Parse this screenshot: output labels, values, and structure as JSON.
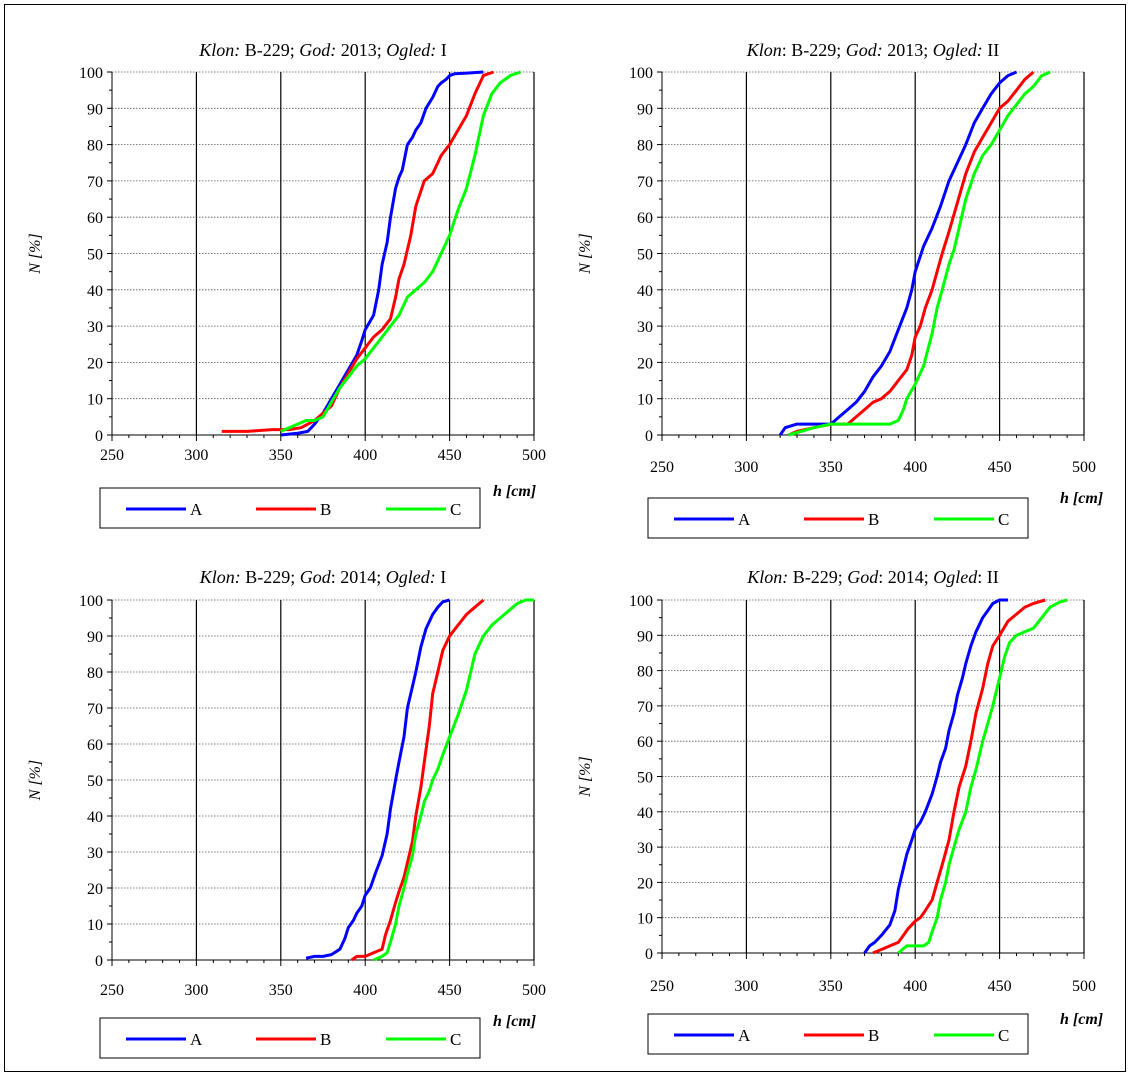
{
  "colors": {
    "A": "#0000ff",
    "B": "#ff0000",
    "C": "#00ff00"
  },
  "chart_data": [
    {
      "type": "line",
      "title": {
        "k1": "Klon:",
        "v1": " B-229; ",
        "k2": "God:",
        "v2": " 2013; ",
        "k3": "Ogled:",
        "v3": " I"
      },
      "xlabel": "h [cm]",
      "ylabel": "N [%]",
      "xlim": [
        250,
        500
      ],
      "ylim": [
        0,
        100
      ],
      "xticks": [
        "250",
        "300",
        "350",
        "400",
        "450",
        "500"
      ],
      "yticks": [
        "0",
        "10",
        "20",
        "30",
        "40",
        "50",
        "60",
        "70",
        "80",
        "90",
        "100"
      ],
      "grid": true,
      "legend": "bottom",
      "series": [
        {
          "name": "A",
          "x": [
            350,
            360,
            366,
            370,
            375,
            380,
            385,
            390,
            395,
            398,
            400,
            405,
            408,
            410,
            413,
            415,
            418,
            420,
            422,
            425,
            428,
            430,
            433,
            436,
            440,
            443,
            445,
            448,
            450,
            453,
            460,
            470
          ],
          "y": [
            0,
            0.5,
            1,
            3,
            6,
            10,
            14,
            18,
            22,
            26,
            29,
            33,
            40,
            47,
            53,
            60,
            68,
            71,
            73,
            80,
            82,
            84,
            86,
            90,
            93,
            96,
            97,
            98,
            99,
            99.5,
            99.7,
            100
          ]
        },
        {
          "name": "B",
          "x": [
            315,
            330,
            345,
            355,
            362,
            370,
            380,
            385,
            390,
            395,
            400,
            405,
            410,
            415,
            418,
            420,
            423,
            427,
            430,
            435,
            440,
            445,
            450,
            455,
            460,
            465,
            470,
            476
          ],
          "y": [
            1,
            1,
            1.5,
            1.5,
            2,
            4,
            8,
            13,
            17,
            21,
            24,
            27,
            29,
            32,
            38,
            43,
            47,
            55,
            63,
            70,
            72,
            77,
            80,
            84,
            88,
            94,
            99,
            100
          ]
        },
        {
          "name": "C",
          "x": [
            350,
            355,
            360,
            365,
            370,
            375,
            380,
            385,
            390,
            395,
            400,
            405,
            410,
            415,
            420,
            425,
            430,
            435,
            440,
            445,
            450,
            455,
            460,
            465,
            470,
            475,
            480,
            486,
            492
          ],
          "y": [
            1,
            2,
            3,
            4,
            4,
            5,
            9,
            13,
            16,
            19,
            21,
            24,
            27,
            30,
            33,
            38,
            40,
            42,
            45,
            50,
            55,
            62,
            68,
            77,
            88,
            94,
            97,
            99,
            100
          ]
        }
      ]
    },
    {
      "type": "line",
      "title": {
        "k1": "Klon",
        "v1": ": B-229; ",
        "k2": "God:",
        "v2": " 2013; ",
        "k3": "Ogled:",
        "v3": " II"
      },
      "xlabel": "h [cm]",
      "ylabel": "N [%]",
      "xlim": [
        250,
        500
      ],
      "ylim": [
        0,
        100
      ],
      "xticks": [
        "250",
        "300",
        "350",
        "400",
        "450",
        "500"
      ],
      "yticks": [
        "0",
        "10",
        "20",
        "30",
        "40",
        "50",
        "60",
        "70",
        "80",
        "90",
        "100"
      ],
      "grid": true,
      "legend": "bottom",
      "series": [
        {
          "name": "A",
          "x": [
            320,
            323,
            330,
            340,
            350,
            355,
            360,
            365,
            370,
            375,
            380,
            385,
            390,
            395,
            398,
            400,
            405,
            410,
            415,
            420,
            425,
            430,
            435,
            440,
            445,
            450,
            455,
            460
          ],
          "y": [
            0,
            2,
            3,
            3,
            3,
            5,
            7,
            9,
            12,
            16,
            19,
            23,
            29,
            35,
            40,
            45,
            52,
            57,
            63,
            70,
            75,
            80,
            86,
            90,
            94,
            97,
            99,
            100
          ]
        },
        {
          "name": "B",
          "x": [
            325,
            330,
            340,
            350,
            360,
            365,
            370,
            375,
            380,
            385,
            390,
            395,
            398,
            400,
            403,
            406,
            410,
            413,
            416,
            420,
            425,
            430,
            435,
            440,
            445,
            450,
            455,
            460,
            465,
            470
          ],
          "y": [
            0,
            1,
            2,
            3,
            3,
            5,
            7,
            9,
            10,
            12,
            15,
            18,
            22,
            27,
            30,
            35,
            40,
            45,
            50,
            56,
            64,
            72,
            78,
            82,
            86,
            90,
            92,
            95,
            98,
            100
          ]
        },
        {
          "name": "C",
          "x": [
            325,
            340,
            350,
            360,
            370,
            375,
            380,
            385,
            390,
            393,
            395,
            400,
            405,
            410,
            413,
            416,
            420,
            423,
            425,
            430,
            435,
            440,
            445,
            450,
            455,
            460,
            465,
            470,
            475,
            480
          ],
          "y": [
            0,
            2,
            3,
            3,
            3,
            3,
            3,
            3,
            4,
            7,
            10,
            14,
            19,
            28,
            35,
            40,
            47,
            51,
            55,
            65,
            72,
            77,
            80,
            84,
            88,
            91,
            94,
            96,
            99,
            100
          ]
        }
      ]
    },
    {
      "type": "line",
      "title": {
        "k1": "Klon:",
        "v1": " B-229; ",
        "k2": "God",
        "v2": ": 2014; ",
        "k3": "Ogled:",
        "v3": " I"
      },
      "xlabel": "h [cm]",
      "ylabel": "N [%]",
      "xlim": [
        250,
        500
      ],
      "ylim": [
        0,
        100
      ],
      "xticks": [
        "250",
        "300",
        "350",
        "400",
        "450",
        "500"
      ],
      "yticks": [
        "0",
        "10",
        "20",
        "30",
        "40",
        "50",
        "60",
        "70",
        "80",
        "90",
        "100"
      ],
      "grid": true,
      "legend": "bottom",
      "series": [
        {
          "name": "A",
          "x": [
            365,
            370,
            375,
            380,
            385,
            388,
            390,
            393,
            395,
            398,
            400,
            403,
            406,
            410,
            413,
            415,
            418,
            420,
            423,
            425,
            428,
            430,
            433,
            436,
            440,
            443,
            446,
            450
          ],
          "y": [
            0.5,
            1,
            1,
            1.5,
            3,
            6,
            9,
            11,
            13,
            15,
            18,
            20,
            24,
            29,
            35,
            42,
            50,
            55,
            62,
            70,
            76,
            80,
            87,
            92,
            96,
            98,
            99.5,
            100
          ]
        },
        {
          "name": "B",
          "x": [
            392,
            395,
            400,
            405,
            410,
            412,
            415,
            418,
            420,
            423,
            425,
            428,
            430,
            433,
            435,
            438,
            440,
            443,
            446,
            450,
            455,
            460,
            465,
            470
          ],
          "y": [
            0,
            1,
            1,
            2,
            3,
            7,
            11,
            16,
            19,
            23,
            27,
            33,
            40,
            48,
            55,
            65,
            74,
            80,
            86,
            90,
            93,
            96,
            98,
            100
          ]
        },
        {
          "name": "C",
          "x": [
            405,
            410,
            413,
            415,
            418,
            420,
            423,
            425,
            428,
            430,
            433,
            435,
            438,
            440,
            443,
            446,
            450,
            455,
            460,
            465,
            470,
            475,
            480,
            485,
            490,
            495,
            500
          ],
          "y": [
            0,
            1,
            2,
            5,
            10,
            15,
            20,
            24,
            29,
            35,
            40,
            44,
            47,
            50,
            53,
            57,
            62,
            68,
            75,
            85,
            90,
            93,
            95,
            97,
            99,
            100,
            100
          ]
        }
      ]
    },
    {
      "type": "line",
      "title": {
        "k1": "Klon:",
        "v1": " B-229; ",
        "k2": "God",
        "v2": ": 2014; ",
        "k3": "Ogled",
        "v3": ": II"
      },
      "xlabel": "h [cm]",
      "ylabel": "N [%]",
      "xlim": [
        250,
        500
      ],
      "ylim": [
        0,
        100
      ],
      "xticks": [
        "250",
        "300",
        "350",
        "400",
        "450",
        "500"
      ],
      "yticks": [
        "0",
        "10",
        "20",
        "30",
        "40",
        "50",
        "60",
        "70",
        "80",
        "90",
        "100"
      ],
      "grid": true,
      "legend": "bottom",
      "series": [
        {
          "name": "A",
          "x": [
            370,
            373,
            376,
            380,
            385,
            388,
            390,
            393,
            395,
            398,
            400,
            403,
            406,
            410,
            413,
            415,
            418,
            420,
            423,
            425,
            428,
            430,
            433,
            436,
            440,
            443,
            446,
            450,
            455
          ],
          "y": [
            0,
            2,
            3,
            5,
            8,
            12,
            18,
            24,
            28,
            32,
            35,
            37,
            40,
            45,
            50,
            54,
            58,
            63,
            68,
            73,
            78,
            82,
            87,
            91,
            95,
            97,
            99,
            100,
            100
          ]
        },
        {
          "name": "B",
          "x": [
            375,
            380,
            385,
            390,
            393,
            396,
            398,
            400,
            403,
            406,
            410,
            413,
            416,
            420,
            423,
            426,
            430,
            433,
            436,
            440,
            443,
            446,
            450,
            455,
            460,
            465,
            470,
            477
          ],
          "y": [
            0,
            1,
            2,
            3,
            5,
            7,
            8,
            9,
            10,
            12,
            15,
            20,
            25,
            32,
            40,
            47,
            53,
            60,
            68,
            75,
            82,
            87,
            90,
            94,
            96,
            98,
            99,
            100
          ]
        },
        {
          "name": "C",
          "x": [
            390,
            395,
            400,
            405,
            408,
            410,
            413,
            415,
            418,
            420,
            423,
            426,
            430,
            433,
            436,
            440,
            443,
            446,
            450,
            453,
            456,
            460,
            465,
            470,
            475,
            480,
            486,
            490
          ],
          "y": [
            0,
            2,
            2,
            2,
            3,
            6,
            10,
            15,
            20,
            25,
            30,
            35,
            40,
            47,
            52,
            60,
            65,
            70,
            78,
            84,
            88,
            90,
            91,
            92,
            95,
            98,
            99.5,
            100
          ]
        }
      ]
    }
  ]
}
